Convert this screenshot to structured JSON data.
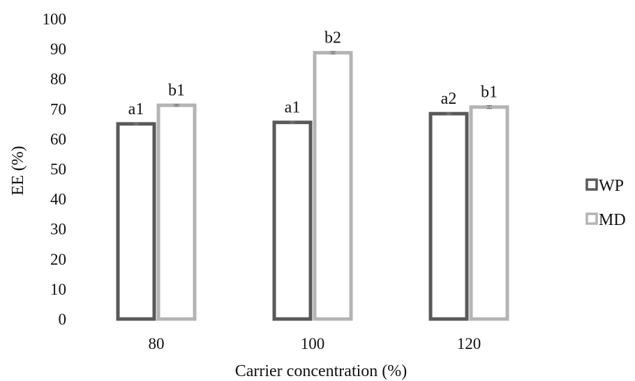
{
  "chart_data": {
    "type": "bar",
    "categories": [
      "80",
      "100",
      "120"
    ],
    "series": [
      {
        "name": "WP",
        "color": "#595959",
        "values": [
          65.0,
          65.5,
          68.4
        ],
        "errors": [
          0.3,
          0.3,
          0.3
        ],
        "labels": [
          "a1",
          "a1",
          "a2"
        ]
      },
      {
        "name": "MD",
        "color": "#b4b4b4",
        "values": [
          71.2,
          88.7,
          70.6
        ],
        "errors": [
          0.3,
          0.4,
          0.5
        ],
        "labels": [
          "b1",
          "b2",
          "b1"
        ]
      }
    ],
    "xlabel": "Carrier concentration (%)",
    "ylabel": "EE (%)",
    "ylim": [
      0,
      100
    ],
    "yticks": [
      "0",
      "10",
      "20",
      "30",
      "40",
      "50",
      "60",
      "70",
      "80",
      "90",
      "100"
    ],
    "grid": false,
    "legend_position": "right"
  }
}
